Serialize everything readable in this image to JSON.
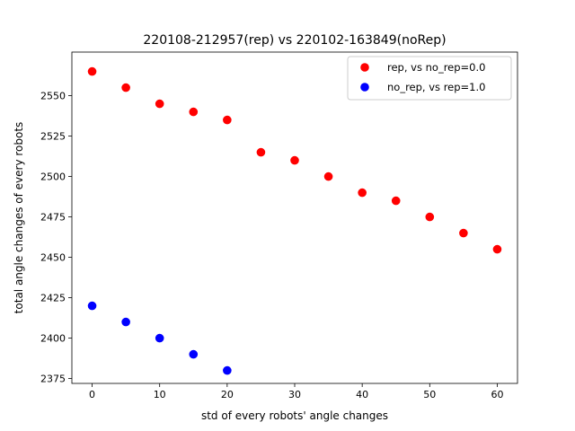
{
  "chart_data": {
    "type": "scatter",
    "title": "220108-212957(rep) vs 220102-163849(noRep)",
    "xlabel": "std of every robots' angle changes",
    "ylabel": "total angle changes of every robots",
    "xlim": [
      -3,
      63
    ],
    "ylim": [
      2372,
      2577
    ],
    "xticks": [
      0,
      10,
      20,
      30,
      40,
      50,
      60
    ],
    "yticks": [
      2375,
      2400,
      2425,
      2450,
      2475,
      2500,
      2525,
      2550
    ],
    "grid": false,
    "legend_position": "top-right",
    "series": [
      {
        "name": "rep, vs no_rep=0.0",
        "color": "#ff0000",
        "x": [
          0,
          5,
          10,
          15,
          20,
          25,
          30,
          35,
          40,
          45,
          50,
          55,
          60
        ],
        "y": [
          2565,
          2555,
          2545,
          2540,
          2535,
          2515,
          2510,
          2500,
          2490,
          2485,
          2475,
          2465,
          2455
        ]
      },
      {
        "name": "no_rep, vs rep=1.0",
        "color": "#0000ff",
        "x": [
          0,
          5,
          10,
          15,
          20
        ],
        "y": [
          2420,
          2410,
          2400,
          2390,
          2380
        ]
      }
    ]
  }
}
